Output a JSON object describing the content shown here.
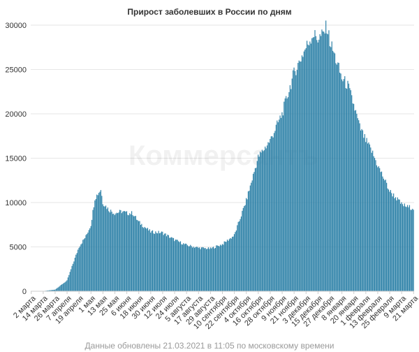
{
  "chart_data": {
    "type": "bar",
    "title": "Прирост заболевших в России по дням",
    "xlabel": "",
    "ylabel": "",
    "ylim": [
      0,
      30000
    ],
    "yticks": [
      0,
      5000,
      10000,
      15000,
      20000,
      25000,
      30000
    ],
    "grid": "horizontal",
    "legend": "none",
    "bar_color": "#2a7fa6",
    "x_start": "2020-03-02",
    "x_end": "2021-03-21",
    "x_tick_labels": [
      "2 марта",
      "14 марта",
      "26 марта",
      "7 апреля",
      "19 апреля",
      "1 мая",
      "13 мая",
      "25 мая",
      "6 июня",
      "18 июня",
      "30 июня",
      "12 июля",
      "24 июля",
      "5 августа",
      "17 августа",
      "29 августа",
      "10 сентября",
      "22 сентября",
      "4 октября",
      "16 октября",
      "28 октября",
      "9 ноября",
      "21 ноября",
      "3 декабря",
      "15 декабря",
      "27 декабря",
      "8 января",
      "20 января",
      "1 февраля",
      "13 февраля",
      "25 февраля",
      "9 марта",
      "21 марта"
    ],
    "series": [
      {
        "points": [
          [
            "2020-03-02",
            0
          ],
          [
            "2020-03-14",
            20
          ],
          [
            "2020-03-26",
            180
          ],
          [
            "2020-04-07",
            1200
          ],
          [
            "2020-04-19",
            5000
          ],
          [
            "2020-04-26",
            6200
          ],
          [
            "2020-05-01",
            7500
          ],
          [
            "2020-05-05",
            10500
          ],
          [
            "2020-05-11",
            11500
          ],
          [
            "2020-05-13",
            10000
          ],
          [
            "2020-05-19",
            9200
          ],
          [
            "2020-05-25",
            8800
          ],
          [
            "2020-06-01",
            9000
          ],
          [
            "2020-06-06",
            8800
          ],
          [
            "2020-06-12",
            8800
          ],
          [
            "2020-06-18",
            7800
          ],
          [
            "2020-06-30",
            6700
          ],
          [
            "2020-07-12",
            6600
          ],
          [
            "2020-07-24",
            5800
          ],
          [
            "2020-08-05",
            5200
          ],
          [
            "2020-08-17",
            4900
          ],
          [
            "2020-08-29",
            4800
          ],
          [
            "2020-09-10",
            5300
          ],
          [
            "2020-09-22",
            6300
          ],
          [
            "2020-10-04",
            10200
          ],
          [
            "2020-10-16",
            15100
          ],
          [
            "2020-10-28",
            17000
          ],
          [
            "2020-11-09",
            20000
          ],
          [
            "2020-11-21",
            24600
          ],
          [
            "2020-12-03",
            27500
          ],
          [
            "2020-12-10",
            29000
          ],
          [
            "2020-12-15",
            28500
          ],
          [
            "2020-12-20",
            28900
          ],
          [
            "2020-12-24",
            29900
          ],
          [
            "2020-12-27",
            28200
          ],
          [
            "2021-01-03",
            25800
          ],
          [
            "2021-01-08",
            24000
          ],
          [
            "2021-01-14",
            23200
          ],
          [
            "2021-01-20",
            21000
          ],
          [
            "2021-01-26",
            18500
          ],
          [
            "2021-02-01",
            17000
          ],
          [
            "2021-02-07",
            15800
          ],
          [
            "2021-02-13",
            14200
          ],
          [
            "2021-02-19",
            12800
          ],
          [
            "2021-02-25",
            11300
          ],
          [
            "2021-03-03",
            10600
          ],
          [
            "2021-03-09",
            9800
          ],
          [
            "2021-03-15",
            9500
          ],
          [
            "2021-03-21",
            9400
          ]
        ]
      }
    ]
  },
  "watermark": "Коммерсантъ",
  "footer": "Данные обновлены 21.03.2021 в 11:05 по московскому времени"
}
